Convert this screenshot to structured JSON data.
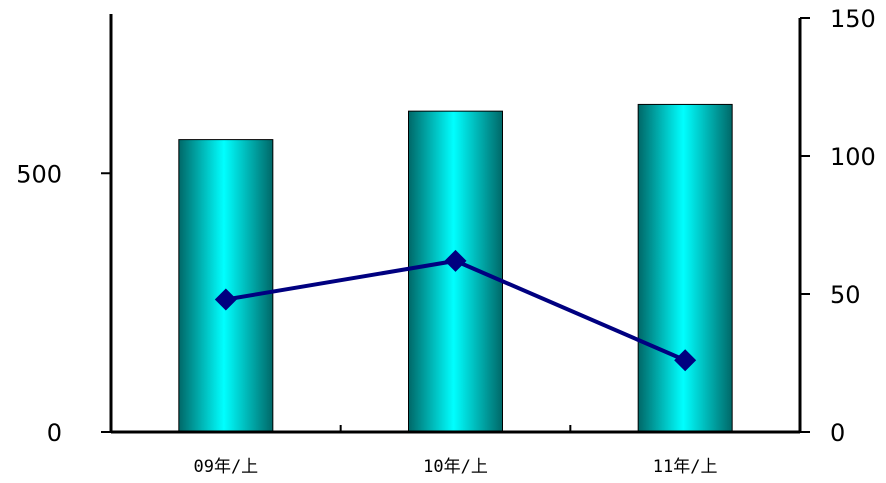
{
  "chart_data": {
    "type": "bar",
    "categories": [
      "09年/上",
      "10年/上",
      "11年/上"
    ],
    "series": [
      {
        "type": "bar",
        "axis": "left",
        "values": [
          565,
          620,
          633
        ]
      },
      {
        "type": "line",
        "axis": "right",
        "values": [
          48,
          62,
          26
        ]
      }
    ],
    "y_left": {
      "ylim": [
        0,
        800
      ],
      "ticks": [
        0,
        500
      ]
    },
    "y_right": {
      "ylim": [
        0,
        150
      ],
      "ticks": [
        0,
        50,
        100,
        150
      ]
    },
    "title": "",
    "xlabel": "",
    "ylabel": "",
    "legend": "none",
    "grid": false,
    "colors": {
      "bar": "#00e8e8",
      "bar_edge": "#000000",
      "line": "#000080",
      "axis": "#000000"
    }
  }
}
